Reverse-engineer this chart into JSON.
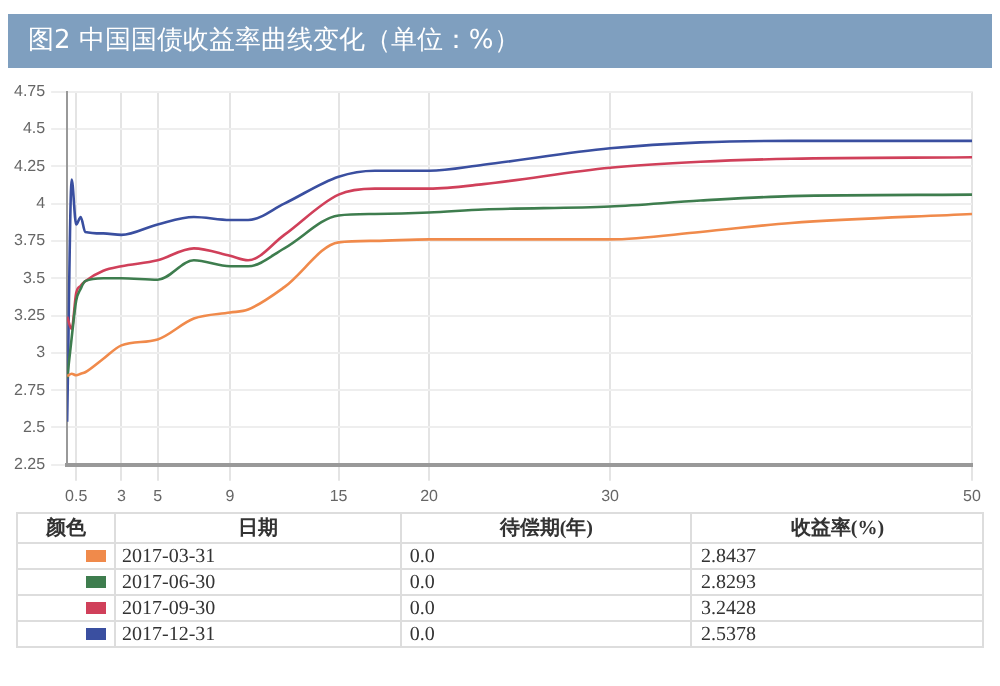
{
  "chart_data": {
    "type": "line",
    "title": "图2 中国国债收益率曲线变化（单位：%）",
    "x": [
      0,
      0.25,
      0.5,
      0.75,
      1,
      2,
      3,
      5,
      7,
      9,
      10,
      12,
      15,
      17,
      20,
      23,
      30,
      35,
      40,
      50
    ],
    "series": [
      {
        "name": "2017-03-31",
        "color": "#f08a4b",
        "values": [
          2.8437,
          2.86,
          2.85,
          2.86,
          2.87,
          2.96,
          3.05,
          3.09,
          3.23,
          3.27,
          3.29,
          3.44,
          3.74,
          3.75,
          3.76,
          3.76,
          3.76,
          3.81,
          3.87,
          3.93
        ]
      },
      {
        "name": "2017-06-30",
        "color": "#3e7d4e",
        "values": [
          2.8293,
          3.1,
          3.35,
          3.43,
          3.48,
          3.5,
          3.5,
          3.49,
          3.62,
          3.58,
          3.58,
          3.7,
          3.92,
          3.93,
          3.94,
          3.96,
          3.98,
          4.02,
          4.05,
          4.06
        ]
      },
      {
        "name": "2017-09-30",
        "color": "#d0405a",
        "values": [
          3.2428,
          3.16,
          3.4,
          3.45,
          3.48,
          3.55,
          3.58,
          3.62,
          3.7,
          3.65,
          3.62,
          3.79,
          4.06,
          4.1,
          4.1,
          4.13,
          4.24,
          4.28,
          4.3,
          4.31
        ]
      },
      {
        "name": "2017-12-31",
        "color": "#3a4fa0",
        "values": [
          2.5378,
          4.16,
          3.86,
          3.91,
          3.81,
          3.8,
          3.79,
          3.86,
          3.91,
          3.89,
          3.89,
          4.0,
          4.18,
          4.22,
          4.22,
          4.26,
          4.37,
          4.41,
          4.42,
          4.42
        ]
      }
    ],
    "xlim": [
      0,
      50
    ],
    "xticks": [
      0.5,
      3,
      5,
      9,
      15,
      20,
      30,
      50
    ],
    "ylim": [
      2.25,
      4.75
    ],
    "yticks": [
      2.25,
      2.5,
      2.75,
      3,
      3.25,
      3.5,
      3.75,
      4,
      4.25,
      4.5,
      4.75
    ],
    "grid": true,
    "marker": "none",
    "line_style": "solid",
    "legend": "bottom",
    "annotations": [
      "颜色",
      "日期",
      "待偿期(年)",
      "收益率(%)",
      "0.0",
      "0.0",
      "0.0",
      "0.0",
      "2.8437",
      "2.8293",
      "3.2428",
      "2.5378"
    ]
  }
}
